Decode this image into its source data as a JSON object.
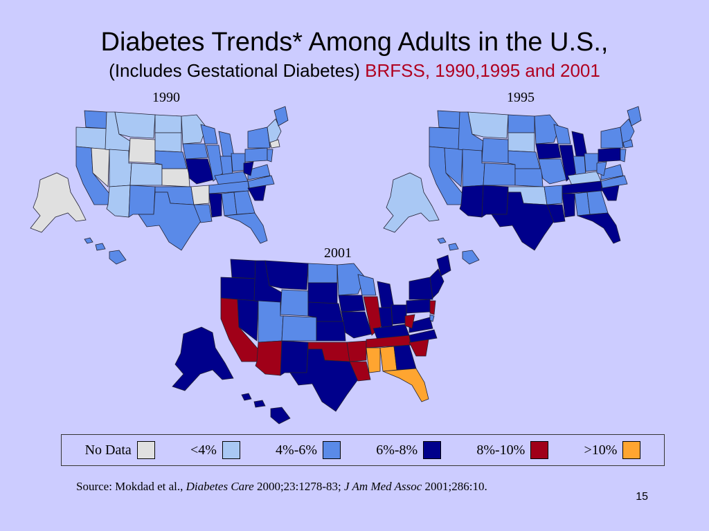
{
  "title": "Diabetes Trends* Among Adults in the U.S.,",
  "subtitle": {
    "main": "(Includes Gestational Diabetes)",
    "accent": "BRFSS, 1990,1995 and 2001"
  },
  "colors": {
    "no_data": "#e0e0e0",
    "lt4": "#a9c8f4",
    "p4_6": "#5a8ae8",
    "p6_8": "#00008b",
    "p8_10": "#a00018",
    "gt10": "#ffa530"
  },
  "maps": [
    {
      "year": "1990",
      "dominant": "p4_6"
    },
    {
      "year": "1995",
      "dominant": "p6_8"
    },
    {
      "year": "2001",
      "dominant": "p6_8"
    }
  ],
  "legend": [
    {
      "label": "No Data",
      "key": "no_data"
    },
    {
      "label": "<4%",
      "key": "lt4"
    },
    {
      "label": "4%-6%",
      "key": "p4_6"
    },
    {
      "label": "6%-8%",
      "key": "p6_8"
    },
    {
      "label": "8%-10%",
      "key": "p8_10"
    },
    {
      "label": ">10%",
      "key": "gt10"
    }
  ],
  "source": {
    "prefix": "Source: Mokdad et al., ",
    "journal1": "Diabetes Care",
    "cite1": " 2000;23:1278-83; ",
    "journal2": "J Am Med Assoc",
    "cite2": " 2001;286:10."
  },
  "page_number": "15"
}
